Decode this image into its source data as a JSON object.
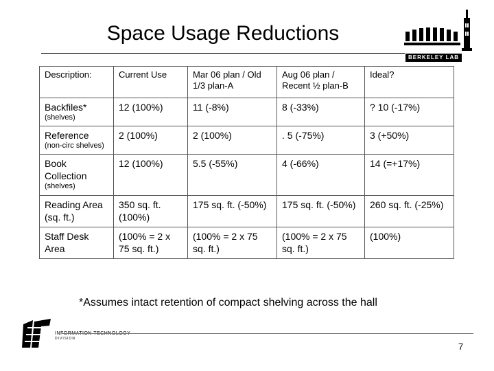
{
  "slide": {
    "title": "Space Usage Reductions",
    "footnote": "*Assumes intact retention of compact shelving across the hall",
    "page_number": "7"
  },
  "logos": {
    "berkeley_lab": {
      "text": "BERKELEY LAB",
      "icon": "berkeley-lab-dome-icon"
    },
    "information_technology": {
      "line1": "INFORMATION TECHNOLOGY",
      "line2": "DIVISION",
      "icon": "it-division-icon"
    }
  },
  "table": {
    "header": [
      "Description:",
      "Current Use",
      "Mar 06 plan / Old 1/3 plan-A",
      "Aug 06 plan / Recent ½ plan-B",
      "Ideal?"
    ],
    "rows": [
      {
        "label": "Backfiles*",
        "sub": "(shelves)",
        "cells": [
          "12 (100%)",
          "11 (-8%)",
          "8 (-33%)",
          "? 10 (-17%)"
        ]
      },
      {
        "label": "Reference",
        "sub": "(non-circ shelves)",
        "cells": [
          "2 (100%)",
          "2 (100%)",
          ". 5 (-75%)",
          "3 (+50%)"
        ]
      },
      {
        "label": "Book Collection",
        "sub": "(shelves)",
        "cells": [
          "12 (100%)",
          "5.5 (-55%)",
          "4 (-66%)",
          "14 (=+17%)"
        ]
      },
      {
        "label": "Reading Area (sq. ft.)",
        "sub": "",
        "cells": [
          "350 sq. ft. (100%)",
          "175 sq. ft. (-50%)",
          "175 sq. ft. (-50%)",
          "260 sq. ft. (-25%)"
        ]
      },
      {
        "label": "Staff Desk Area",
        "sub": "",
        "cells": [
          "(100% = 2 x 75 sq. ft.)",
          "(100% = 2 x 75 sq. ft.)",
          "(100% = 2 x 75 sq. ft.)",
          "(100%)"
        ]
      }
    ]
  }
}
